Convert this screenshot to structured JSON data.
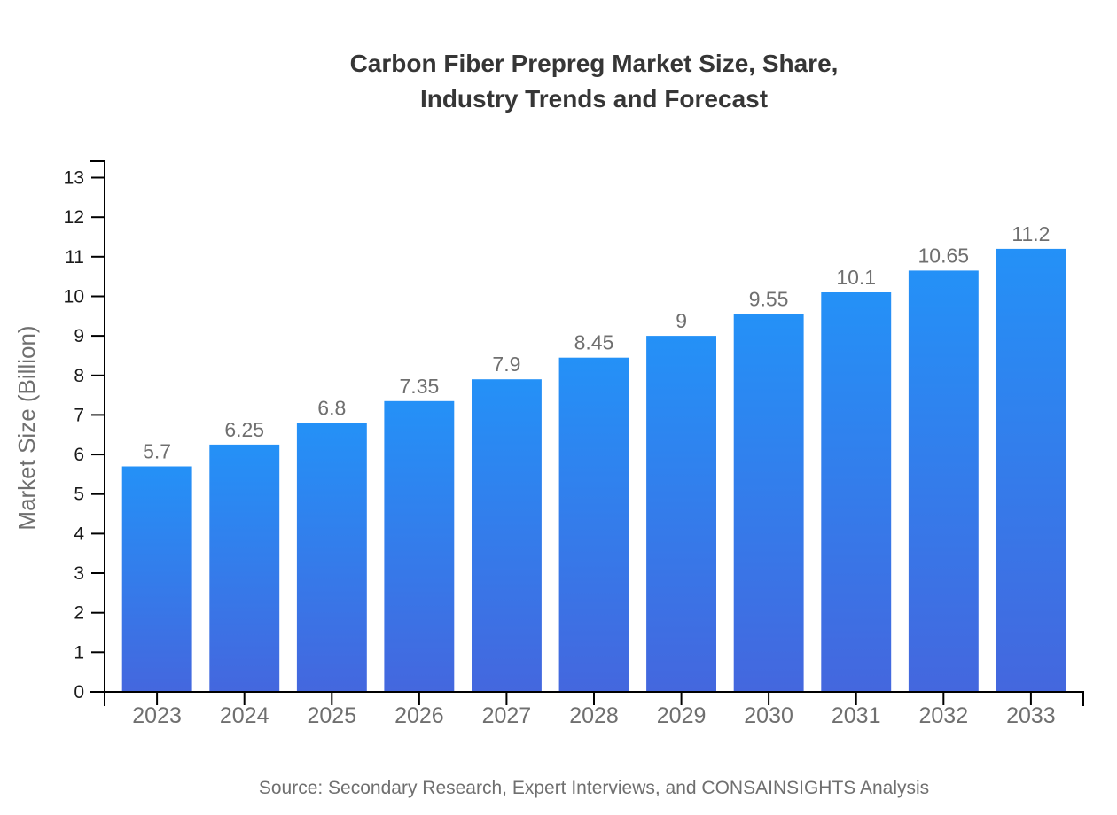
{
  "page": {
    "background": "#ffffff"
  },
  "chart_data": {
    "type": "bar",
    "title_lines": [
      "Carbon Fiber Prepreg Market Size, Share,",
      "Industry Trends and Forecast"
    ],
    "categories": [
      "2023",
      "2024",
      "2025",
      "2026",
      "2027",
      "2028",
      "2029",
      "2030",
      "2031",
      "2032",
      "2033"
    ],
    "values": [
      5.7,
      6.25,
      6.8,
      7.35,
      7.9,
      8.45,
      9,
      9.55,
      10.1,
      10.65,
      11.2
    ],
    "value_labels": [
      "5.7",
      "6.25",
      "6.8",
      "7.35",
      "7.9",
      "8.45",
      "9",
      "9.55",
      "10.1",
      "10.65",
      "11.2"
    ],
    "xlabel": "",
    "ylabel": "Market Size (Billion)",
    "ylim": [
      0,
      13
    ],
    "ytick_step": 1,
    "grid": false,
    "legend": false,
    "source_note": "Source: Secondary Research, Expert Interviews, and CONSAINSIGHTS Analysis",
    "colors": {
      "bar_gradient_top": "#2491F7",
      "bar_gradient_bottom": "#4467DE",
      "axis": "#000000",
      "ytick_label": "#1a1a1a",
      "xtick_label": "#6f6f6f",
      "value_label": "#6f6f6f",
      "title": "#363636",
      "text_muted": "#6f6f6f"
    }
  }
}
